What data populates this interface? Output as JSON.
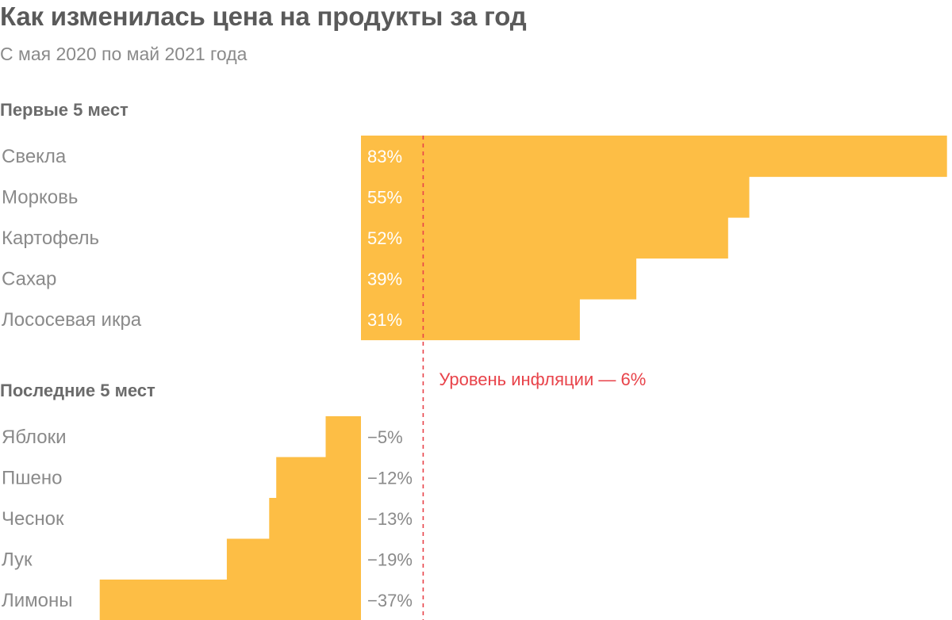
{
  "title": "Как изменилась цена на продукты за год",
  "subtitle": "С мая 2020 по май 2021 года",
  "sections": {
    "top": "Первые 5 мест",
    "bottom": "Последние 5 мест"
  },
  "colors": {
    "bar": "#FDBE45",
    "reference_line": "#E8434A",
    "title": "#5A5A5A",
    "label": "#8A8A8A"
  },
  "chart_data": {
    "type": "bar",
    "orientation": "horizontal",
    "groups": [
      {
        "name": "Первые 5 мест",
        "categories": [
          "Свекла",
          "Морковь",
          "Картофель",
          "Сахар",
          "Лососевая икра"
        ],
        "values": [
          83,
          55,
          52,
          39,
          31
        ],
        "labels": [
          "83%",
          "55%",
          "52%",
          "39%",
          "31%"
        ]
      },
      {
        "name": "Последние 5 мест",
        "categories": [
          "Яблоки",
          "Пшено",
          "Чеснок",
          "Лук",
          "Лимоны"
        ],
        "values": [
          -5,
          -12,
          -13,
          -19,
          -37
        ],
        "labels": [
          "−5%",
          "−12%",
          "−13%",
          "−19%",
          "−37%"
        ]
      }
    ],
    "reference_line": {
      "value": 6,
      "label": "Уровень инфляции — 6%",
      "style": "dashed"
    },
    "units": "%",
    "grid": false,
    "legend": "none"
  }
}
